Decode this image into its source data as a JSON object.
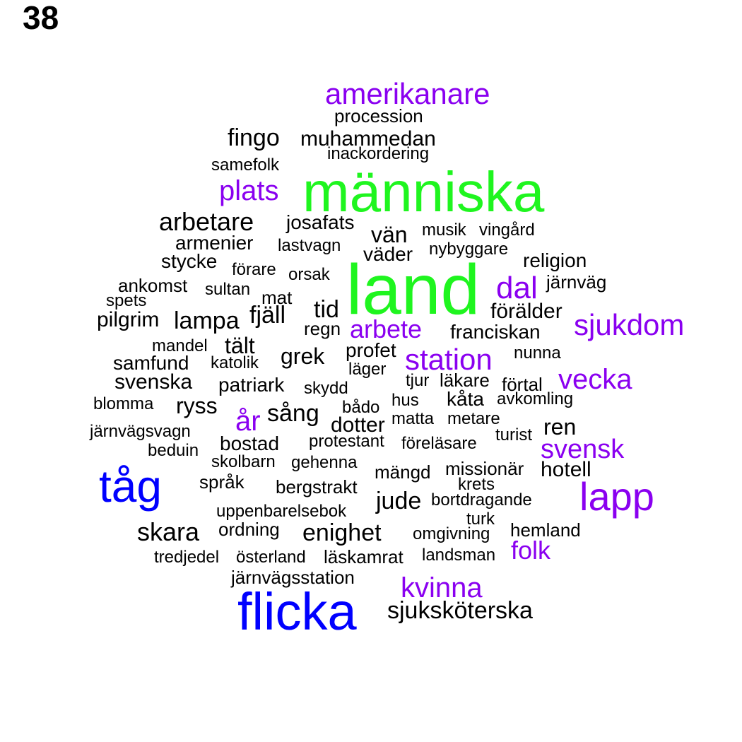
{
  "panel_number": "38",
  "colors": {
    "black": "#000000",
    "purple": "#8a00f0",
    "green": "#1ff51f",
    "blue": "#0000ff"
  },
  "words": [
    {
      "text": "land",
      "color": "green"
    },
    {
      "text": "människa",
      "color": "green"
    },
    {
      "text": "flicka",
      "color": "blue"
    },
    {
      "text": "tåg",
      "color": "blue"
    },
    {
      "text": "lapp",
      "color": "purple"
    },
    {
      "text": "amerikanare",
      "color": "purple"
    },
    {
      "text": "plats",
      "color": "purple"
    },
    {
      "text": "dal",
      "color": "purple"
    },
    {
      "text": "sjukdom",
      "color": "purple"
    },
    {
      "text": "arbete",
      "color": "purple"
    },
    {
      "text": "station",
      "color": "purple"
    },
    {
      "text": "vecka",
      "color": "purple"
    },
    {
      "text": "år",
      "color": "purple"
    },
    {
      "text": "svensk",
      "color": "purple"
    },
    {
      "text": "folk",
      "color": "purple"
    },
    {
      "text": "kvinna",
      "color": "purple"
    },
    {
      "text": "procession",
      "color": "black"
    },
    {
      "text": "fingo",
      "color": "black"
    },
    {
      "text": "muhammedan",
      "color": "black"
    },
    {
      "text": "inackordering",
      "color": "black"
    },
    {
      "text": "samefolk",
      "color": "black"
    },
    {
      "text": "arbetare",
      "color": "black"
    },
    {
      "text": "josafats",
      "color": "black"
    },
    {
      "text": "vän",
      "color": "black"
    },
    {
      "text": "musik",
      "color": "black"
    },
    {
      "text": "vingård",
      "color": "black"
    },
    {
      "text": "armenier",
      "color": "black"
    },
    {
      "text": "lastvagn",
      "color": "black"
    },
    {
      "text": "väder",
      "color": "black"
    },
    {
      "text": "nybyggare",
      "color": "black"
    },
    {
      "text": "stycke",
      "color": "black"
    },
    {
      "text": "religion",
      "color": "black"
    },
    {
      "text": "förare",
      "color": "black"
    },
    {
      "text": "orsak",
      "color": "black"
    },
    {
      "text": "ankomst",
      "color": "black"
    },
    {
      "text": "sultan",
      "color": "black"
    },
    {
      "text": "järnväg",
      "color": "black"
    },
    {
      "text": "spets",
      "color": "black"
    },
    {
      "text": "mat",
      "color": "black"
    },
    {
      "text": "tid",
      "color": "black"
    },
    {
      "text": "förälder",
      "color": "black"
    },
    {
      "text": "pilgrim",
      "color": "black"
    },
    {
      "text": "lampa",
      "color": "black"
    },
    {
      "text": "fjäll",
      "color": "black"
    },
    {
      "text": "regn",
      "color": "black"
    },
    {
      "text": "franciskan",
      "color": "black"
    },
    {
      "text": "mandel",
      "color": "black"
    },
    {
      "text": "tält",
      "color": "black"
    },
    {
      "text": "profet",
      "color": "black"
    },
    {
      "text": "nunna",
      "color": "black"
    },
    {
      "text": "samfund",
      "color": "black"
    },
    {
      "text": "katolik",
      "color": "black"
    },
    {
      "text": "grek",
      "color": "black"
    },
    {
      "text": "läger",
      "color": "black"
    },
    {
      "text": "svenska",
      "color": "black"
    },
    {
      "text": "patriark",
      "color": "black"
    },
    {
      "text": "skydd",
      "color": "black"
    },
    {
      "text": "tjur",
      "color": "black"
    },
    {
      "text": "läkare",
      "color": "black"
    },
    {
      "text": "förtal",
      "color": "black"
    },
    {
      "text": "blomma",
      "color": "black"
    },
    {
      "text": "ryss",
      "color": "black"
    },
    {
      "text": "sång",
      "color": "black"
    },
    {
      "text": "bådo",
      "color": "black"
    },
    {
      "text": "hus",
      "color": "black"
    },
    {
      "text": "kåta",
      "color": "black"
    },
    {
      "text": "avkomling",
      "color": "black"
    },
    {
      "text": "järnvägsvagn",
      "color": "black"
    },
    {
      "text": "dotter",
      "color": "black"
    },
    {
      "text": "matta",
      "color": "black"
    },
    {
      "text": "metare",
      "color": "black"
    },
    {
      "text": "ren",
      "color": "black"
    },
    {
      "text": "beduin",
      "color": "black"
    },
    {
      "text": "bostad",
      "color": "black"
    },
    {
      "text": "protestant",
      "color": "black"
    },
    {
      "text": "föreläsare",
      "color": "black"
    },
    {
      "text": "turist",
      "color": "black"
    },
    {
      "text": "skolbarn",
      "color": "black"
    },
    {
      "text": "gehenna",
      "color": "black"
    },
    {
      "text": "mängd",
      "color": "black"
    },
    {
      "text": "missionär",
      "color": "black"
    },
    {
      "text": "hotell",
      "color": "black"
    },
    {
      "text": "språk",
      "color": "black"
    },
    {
      "text": "bergstrakt",
      "color": "black"
    },
    {
      "text": "krets",
      "color": "black"
    },
    {
      "text": "jude",
      "color": "black"
    },
    {
      "text": "bortdragande",
      "color": "black"
    },
    {
      "text": "uppenbarelsebok",
      "color": "black"
    },
    {
      "text": "turk",
      "color": "black"
    },
    {
      "text": "skara",
      "color": "black"
    },
    {
      "text": "ordning",
      "color": "black"
    },
    {
      "text": "enighet",
      "color": "black"
    },
    {
      "text": "omgivning",
      "color": "black"
    },
    {
      "text": "hemland",
      "color": "black"
    },
    {
      "text": "tredjedel",
      "color": "black"
    },
    {
      "text": "österland",
      "color": "black"
    },
    {
      "text": "läskamrat",
      "color": "black"
    },
    {
      "text": "landsman",
      "color": "black"
    },
    {
      "text": "järnvägsstation",
      "color": "black"
    },
    {
      "text": "sjuksköterska",
      "color": "black"
    }
  ]
}
